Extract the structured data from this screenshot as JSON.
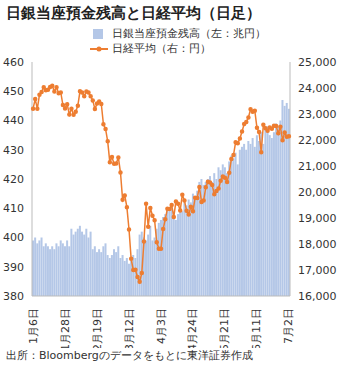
{
  "chart_data": {
    "type": "combo",
    "title": "日銀当座預金残高と日経平均（日足）",
    "source": "出所：Bloombergのデータをもとに東洋証券作成",
    "categories": [
      "1月6日",
      null,
      null,
      null,
      null,
      null,
      null,
      null,
      null,
      null,
      null,
      null,
      null,
      null,
      null,
      "1月28日",
      null,
      null,
      null,
      null,
      null,
      null,
      null,
      null,
      null,
      null,
      null,
      null,
      null,
      null,
      "2月19日",
      null,
      null,
      null,
      null,
      null,
      null,
      null,
      null,
      null,
      null,
      null,
      null,
      null,
      null,
      "3月12日",
      null,
      null,
      null,
      null,
      null,
      null,
      null,
      null,
      null,
      null,
      null,
      null,
      null,
      null,
      "4月3日",
      null,
      null,
      null,
      null,
      null,
      null,
      null,
      null,
      null,
      null,
      null,
      null,
      null,
      null,
      "4月24日",
      null,
      null,
      null,
      null,
      null,
      null,
      null,
      null,
      null,
      null,
      null,
      null,
      null,
      null,
      "5月21日",
      null,
      null,
      null,
      null,
      null,
      null,
      null,
      null,
      null,
      null,
      null,
      null,
      null,
      null,
      "6月11日",
      null,
      null,
      null,
      null,
      null,
      null,
      null,
      null,
      null,
      null,
      null,
      null,
      null,
      null,
      "7月2日"
    ],
    "series": [
      {
        "name": "日銀当座預金残高（左：兆円）",
        "type": "bar",
        "color": "#b4c7e7",
        "values": [
          399,
          400,
          398,
          399,
          400,
          397,
          398,
          397,
          396,
          397,
          396,
          398,
          397,
          399,
          398,
          397,
          399,
          397,
          403,
          401,
          402,
          403,
          404,
          402,
          401,
          403,
          400,
          402,
          396,
          397,
          395,
          396,
          395,
          397,
          398,
          394,
          393,
          394,
          396,
          395,
          397,
          393,
          394,
          392,
          393,
          391,
          392,
          394,
          393,
          396,
          401,
          402,
          400,
          399,
          401,
          404,
          399,
          400,
          403,
          405,
          406,
          407,
          408,
          410,
          409,
          411,
          407,
          406,
          408,
          410,
          409,
          412,
          411,
          413,
          412,
          415,
          414,
          416,
          419,
          420,
          418,
          419,
          420,
          421,
          419,
          422,
          420,
          424,
          423,
          425,
          424,
          422,
          426,
          428,
          427,
          429,
          425,
          430,
          431,
          432,
          430,
          433,
          432,
          434,
          431,
          435,
          433,
          436,
          432,
          437,
          438,
          435,
          434,
          436,
          439,
          438,
          440,
          447,
          445,
          446,
          444
        ]
      },
      {
        "name": "日経平均（右：円）",
        "type": "line",
        "axis": "y2",
        "color": "#ed7d31",
        "marker": "circle",
        "values": [
          23204,
          23575,
          23204,
          23739,
          23850,
          24025,
          23916,
          23933,
          24041,
          24083,
          23864,
          24031,
          23795,
          23827,
          23343,
          23215,
          23379,
          22977,
          23205,
          22972,
          23084,
          23320,
          23873,
          23827,
          23686,
          23861,
          23828,
          23687,
          23523,
          23194,
          23400,
          23479,
          23386,
          22605,
          22426,
          21948,
          21142,
          21344,
          21082,
          21100,
          21329,
          20749,
          19698,
          19867,
          19416,
          18559,
          17431,
          17002,
          17011,
          16726,
          16552,
          16887,
          18092,
          19546,
          18664,
          19389,
          19084,
          18917,
          18065,
          17819,
          17820,
          18576,
          18950,
          19353,
          19345,
          19498,
          19043,
          19639,
          19550,
          19290,
          19897,
          19669,
          19281,
          19138,
          19429,
          19262,
          19783,
          19771,
          20194,
          19619,
          19674,
          20179,
          20390,
          20366,
          20267,
          19915,
          20037,
          20133,
          20433,
          20595,
          20552,
          20388,
          20741,
          21271,
          21419,
          21916,
          21877,
          22062,
          22325,
          22613,
          22695,
          22863,
          23178,
          23091,
          23124,
          22472,
          22305,
          21530,
          22582,
          22455,
          22355,
          22478,
          22437,
          22549,
          22534,
          22259,
          22512,
          21995,
          22288,
          22122,
          22145
        ]
      }
    ],
    "ylim": [
      380,
      460
    ],
    "yticks": [
      380,
      390,
      400,
      410,
      420,
      430,
      440,
      450,
      460
    ],
    "y2lim": [
      16000,
      25000
    ],
    "y2ticks": [
      {
        "value": 16000,
        "label": "16,000"
      },
      {
        "value": 17000,
        "label": "17,000"
      },
      {
        "value": 18000,
        "label": "18,000"
      },
      {
        "value": 19000,
        "label": "19,000"
      },
      {
        "value": 20000,
        "label": "20,000"
      },
      {
        "value": 21000,
        "label": "21,000"
      },
      {
        "value": 22000,
        "label": "22,000"
      },
      {
        "value": 23000,
        "label": "23,000"
      },
      {
        "value": 24000,
        "label": "24,000"
      },
      {
        "value": 25000,
        "label": "25,000"
      }
    ],
    "grid": false
  }
}
